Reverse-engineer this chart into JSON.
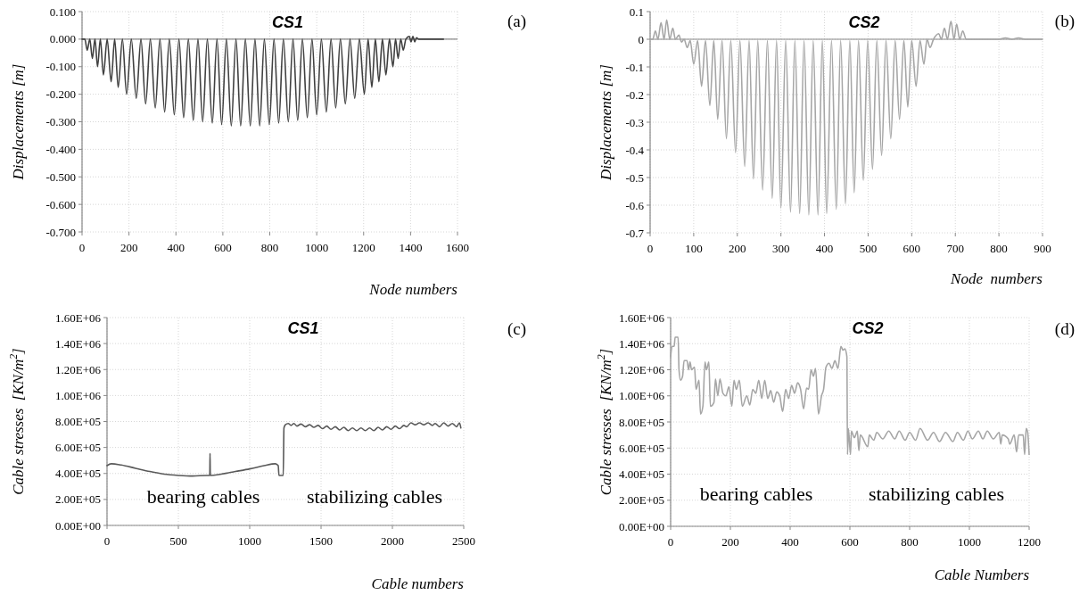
{
  "chart_data": [
    {
      "type": "line",
      "title": "CS1",
      "xlabel": "Node numbers",
      "ylabel": "Displacements [m]",
      "annotations": [
        "(a)"
      ],
      "xlim": [
        0,
        1600
      ],
      "xticks": [
        0,
        200,
        400,
        600,
        800,
        1000,
        1200,
        1400,
        1600
      ],
      "ylim": [
        -0.7,
        0.1
      ],
      "yticks": [
        {
          "value": 0.1,
          "label": "0.100"
        },
        {
          "value": 0,
          "label": "0.000"
        },
        {
          "value": -0.1,
          "label": "-0.100"
        },
        {
          "value": -0.2,
          "label": "-0.200"
        },
        {
          "value": -0.3,
          "label": "-0.300"
        },
        {
          "value": -0.4,
          "label": "-0.400"
        },
        {
          "value": -0.5,
          "label": "-0.500"
        },
        {
          "value": -0.6,
          "label": "-0.600"
        },
        {
          "value": -0.7,
          "label": "-0.700"
        }
      ],
      "grid": true,
      "series": [
        {
          "color": "#404040",
          "x": [
            0,
            12,
            22,
            33,
            44,
            55,
            66,
            78,
            91,
            107,
            124,
            139,
            154,
            172,
            190,
            210,
            231,
            251,
            271,
            291,
            312,
            332,
            352,
            372,
            393,
            413,
            433,
            453,
            474,
            494,
            514,
            534,
            555,
            575,
            595,
            615,
            636,
            656,
            676,
            696,
            717,
            737,
            757,
            777,
            798,
            818,
            838,
            858,
            879,
            899,
            919,
            939,
            960,
            980,
            1000,
            1020,
            1041,
            1061,
            1081,
            1101,
            1122,
            1142,
            1162,
            1182,
            1203,
            1219,
            1235,
            1250,
            1265,
            1280,
            1295,
            1310,
            1325,
            1336,
            1347,
            1358,
            1369,
            1380,
            1395,
            1402,
            1410,
            1418,
            1425,
            1435,
            1540
          ],
          "values": [
            0,
            0,
            -0.04,
            0,
            -0.07,
            0,
            -0.1,
            0,
            -0.13,
            0,
            -0.155,
            0,
            -0.175,
            0,
            -0.2,
            0,
            -0.215,
            0,
            -0.235,
            0,
            -0.25,
            0,
            -0.265,
            0,
            -0.275,
            0,
            -0.285,
            0,
            -0.295,
            0,
            -0.3,
            0,
            -0.305,
            0,
            -0.31,
            0,
            -0.315,
            0,
            -0.315,
            0,
            -0.315,
            0,
            -0.315,
            0,
            -0.31,
            0,
            -0.305,
            0,
            -0.3,
            0,
            -0.295,
            0,
            -0.285,
            0,
            -0.275,
            0,
            -0.265,
            0,
            -0.25,
            0,
            -0.235,
            0,
            -0.215,
            0,
            -0.2,
            0,
            -0.175,
            0,
            -0.155,
            0,
            -0.13,
            0,
            -0.1,
            0,
            -0.07,
            0,
            -0.04,
            0,
            0.01,
            -0.01,
            0.01,
            -0.01,
            0.005,
            0,
            0
          ]
        }
      ]
    },
    {
      "type": "line",
      "title": "CS2",
      "xlabel": "Node  numbers",
      "ylabel": "Displacements [m]",
      "annotations": [
        "(b)"
      ],
      "xlim": [
        0,
        900
      ],
      "xticks": [
        0,
        100,
        200,
        300,
        400,
        500,
        600,
        700,
        800,
        900
      ],
      "ylim": [
        -0.7,
        0.1
      ],
      "yticks": [
        0.1,
        0,
        -0.1,
        -0.2,
        -0.3,
        -0.4,
        -0.5,
        -0.6,
        -0.7
      ],
      "grid": true,
      "series": [
        {
          "color": "#a6a6a6",
          "x": [
            0,
            6,
            12,
            18,
            25,
            32,
            38,
            45,
            52,
            58,
            66,
            72,
            78,
            85,
            92,
            100,
            109,
            118,
            127,
            137,
            146,
            155,
            165,
            175,
            185,
            196,
            206,
            217,
            227,
            237,
            247,
            258,
            269,
            280,
            290,
            300,
            311,
            322,
            332,
            343,
            353,
            364,
            374,
            385,
            395,
            405,
            416,
            427,
            437,
            448,
            458,
            468,
            478,
            489,
            499,
            510,
            520,
            531,
            541,
            552,
            562,
            572,
            582,
            591,
            600,
            610,
            619,
            628,
            635,
            642,
            650,
            662,
            668,
            675,
            682,
            690,
            697,
            703,
            710,
            717,
            725,
            800,
            815,
            830,
            845,
            860,
            900
          ],
          "values": [
            0,
            0,
            0.03,
            0,
            0.06,
            0,
            0.07,
            0,
            0.04,
            0,
            0.015,
            -0.01,
            0,
            -0.03,
            -0.005,
            -0.09,
            -0.005,
            -0.17,
            -0.005,
            -0.24,
            -0.005,
            -0.29,
            -0.005,
            -0.36,
            -0.005,
            -0.41,
            -0.005,
            -0.46,
            -0.005,
            -0.505,
            -0.005,
            -0.545,
            -0.005,
            -0.575,
            -0.005,
            -0.61,
            -0.005,
            -0.625,
            -0.005,
            -0.63,
            -0.005,
            -0.635,
            -0.005,
            -0.635,
            -0.005,
            -0.63,
            -0.005,
            -0.615,
            -0.005,
            -0.595,
            -0.005,
            -0.555,
            -0.005,
            -0.51,
            -0.005,
            -0.47,
            -0.005,
            -0.42,
            -0.005,
            -0.36,
            -0.005,
            -0.29,
            -0.005,
            -0.245,
            -0.005,
            -0.17,
            -0.005,
            -0.09,
            0,
            -0.03,
            0,
            0.02,
            0,
            0.04,
            0,
            0.065,
            0,
            0.055,
            0,
            0.03,
            0,
            0,
            0.005,
            0,
            0.005,
            0,
            0
          ]
        }
      ]
    },
    {
      "type": "line",
      "title": "CS1",
      "xlabel": "Cable numbers",
      "ylabel": "Cable stresses  [KN/m$^{2}$]",
      "annotations": [
        "(c)",
        "bearing cables",
        "stabilizing cables"
      ],
      "xlim": [
        0,
        2500
      ],
      "xticks": [
        0,
        500,
        1000,
        1500,
        2000,
        2500
      ],
      "ylim": [
        0,
        1600000
      ],
      "yticks": [
        {
          "value": 0,
          "label": "0.00E+00"
        },
        {
          "value": 200000,
          "label": "2.00E+05"
        },
        {
          "value": 400000,
          "label": "4.00E+05"
        },
        {
          "value": 600000,
          "label": "6.00E+05"
        },
        {
          "value": 800000,
          "label": "8.00E+05"
        },
        {
          "value": 1000000,
          "label": "1.00E+06"
        },
        {
          "value": 1200000,
          "label": "1.20E+06"
        },
        {
          "value": 1400000,
          "label": "1.40E+06"
        },
        {
          "value": 1600000,
          "label": "1.60E+06"
        }
      ],
      "grid": true,
      "series": [
        {
          "color": "#595959",
          "x": [
            0,
            30,
            100,
            200,
            300,
            400,
            500,
            600,
            700,
            720,
            722,
            724,
            800,
            900,
            1000,
            1100,
            1180,
            1200,
            1205,
            1235,
            1240,
            1250,
            1270,
            1290,
            1310,
            1330,
            1360,
            1390,
            1420,
            1450,
            1480,
            1510,
            1540,
            1570,
            1600,
            1630,
            1660,
            1690,
            1720,
            1750,
            1780,
            1810,
            1840,
            1870,
            1900,
            1930,
            1960,
            1990,
            2020,
            2050,
            2080,
            2100,
            2130,
            2160,
            2190,
            2220,
            2250,
            2280,
            2300,
            2330,
            2360,
            2390,
            2420,
            2450,
            2470,
            2480
          ],
          "values": [
            460000,
            475000,
            465000,
            440000,
            415000,
            395000,
            385000,
            380000,
            385000,
            385000,
            555000,
            385000,
            395000,
            415000,
            435000,
            460000,
            475000,
            460000,
            385000,
            385000,
            750000,
            775000,
            785000,
            770000,
            785000,
            765000,
            780000,
            760000,
            775000,
            755000,
            770000,
            745000,
            765000,
            740000,
            760000,
            735000,
            755000,
            730000,
            750000,
            730000,
            750000,
            730000,
            750000,
            730000,
            755000,
            735000,
            760000,
            740000,
            765000,
            745000,
            770000,
            760000,
            790000,
            775000,
            790000,
            775000,
            790000,
            770000,
            785000,
            760000,
            790000,
            765000,
            785000,
            760000,
            790000,
            750000
          ]
        }
      ]
    },
    {
      "type": "line",
      "title": "CS2",
      "xlabel": "Cable Numbers",
      "ylabel": "Cable stresses  [KN/m$^{2}$]",
      "annotations": [
        "(d)",
        "bearing cables",
        "stabilizing cables"
      ],
      "xlim": [
        0,
        1200
      ],
      "xticks": [
        0,
        200,
        400,
        600,
        800,
        1000,
        1200
      ],
      "ylim": [
        0,
        1600000
      ],
      "yticks": [
        {
          "value": 0,
          "label": "0.00E+00"
        },
        {
          "value": 200000,
          "label": "2.00E+05"
        },
        {
          "value": 400000,
          "label": "4.00E+05"
        },
        {
          "value": 600000,
          "label": "6.00E+05"
        },
        {
          "value": 800000,
          "label": "8.00E+05"
        },
        {
          "value": 1000000,
          "label": "1.00E+06"
        },
        {
          "value": 1200000,
          "label": "1.20E+06"
        },
        {
          "value": 1400000,
          "label": "1.40E+06"
        },
        {
          "value": 1600000,
          "label": "1.60E+06"
        }
      ],
      "grid": true,
      "series": [
        {
          "color": "#a6a6a6",
          "x": [
            0,
            5,
            12,
            15,
            25,
            28,
            33,
            40,
            45,
            55,
            60,
            65,
            70,
            80,
            85,
            95,
            100,
            108,
            115,
            120,
            128,
            133,
            145,
            150,
            158,
            165,
            175,
            185,
            195,
            205,
            212,
            220,
            230,
            240,
            255,
            265,
            275,
            285,
            295,
            305,
            315,
            325,
            335,
            345,
            355,
            365,
            375,
            385,
            395,
            405,
            415,
            425,
            435,
            445,
            455,
            462,
            470,
            478,
            485,
            495,
            505,
            512,
            520,
            530,
            540,
            550,
            560,
            570,
            577,
            583,
            590,
            592,
            595,
            602,
            605,
            615,
            625,
            630,
            635,
            660,
            665,
            680,
            690,
            710,
            730,
            750,
            765,
            785,
            800,
            820,
            835,
            860,
            880,
            900,
            920,
            945,
            960,
            980,
            995,
            1010,
            1030,
            1045,
            1060,
            1080,
            1100,
            1105,
            1110,
            1130,
            1135,
            1150,
            1158,
            1165,
            1180,
            1185,
            1190,
            1195,
            1200
          ],
          "values": [
            1300000,
            1380000,
            1380000,
            1450000,
            1450000,
            1200000,
            1120000,
            1150000,
            1270000,
            1270000,
            1200000,
            1260000,
            1200000,
            1220000,
            1050000,
            1120000,
            860000,
            920000,
            1260000,
            1200000,
            1260000,
            920000,
            950000,
            1130000,
            1000000,
            1130000,
            1020000,
            1000000,
            1070000,
            920000,
            1120000,
            1050000,
            1120000,
            920000,
            1000000,
            930000,
            1050000,
            1020000,
            1120000,
            980000,
            1120000,
            980000,
            1040000,
            950000,
            1030000,
            1000000,
            880000,
            1050000,
            980000,
            1080000,
            1020000,
            1100000,
            1050000,
            900000,
            1060000,
            1050000,
            1200000,
            1150000,
            1210000,
            860000,
            1000000,
            1050000,
            1220000,
            1250000,
            1210000,
            1270000,
            1210000,
            1380000,
            1350000,
            1360000,
            1300000,
            550000,
            750000,
            550000,
            730000,
            680000,
            730000,
            580000,
            700000,
            610000,
            700000,
            660000,
            720000,
            670000,
            730000,
            670000,
            730000,
            660000,
            720000,
            660000,
            750000,
            660000,
            720000,
            650000,
            720000,
            650000,
            720000,
            660000,
            730000,
            670000,
            730000,
            670000,
            730000,
            670000,
            720000,
            630000,
            700000,
            670000,
            630000,
            700000,
            570000,
            700000,
            700000,
            550000,
            750000,
            720000,
            550000
          ]
        }
      ]
    }
  ]
}
